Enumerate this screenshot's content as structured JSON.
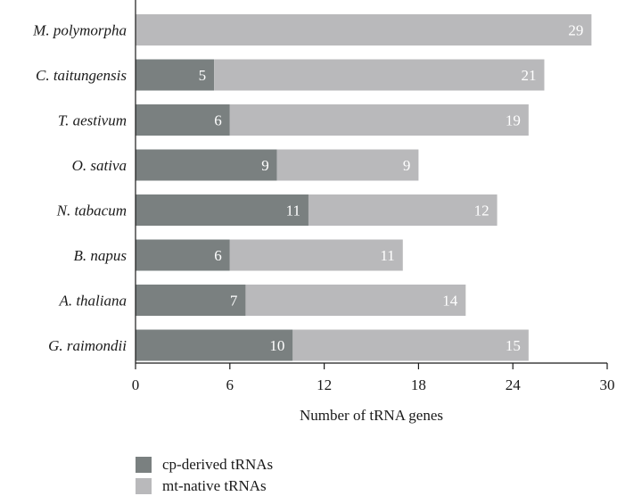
{
  "chart_data": {
    "type": "bar",
    "orientation": "horizontal",
    "stacked": true,
    "categories": [
      "M. polymorpha",
      "C. taitungensis",
      "T. aestivum",
      "O. sativa",
      "N. tabacum",
      "B. napus",
      "A. thaliana",
      "G. raimondii"
    ],
    "series": [
      {
        "name": "cp-derived tRNAs",
        "color": "#7a8080",
        "values": [
          0,
          5,
          6,
          9,
          11,
          6,
          7,
          10
        ]
      },
      {
        "name": "mt-native tRNAs",
        "color": "#b9b9bb",
        "values": [
          29,
          21,
          19,
          9,
          12,
          11,
          14,
          15
        ]
      }
    ],
    "xlabel": "Number of tRNA genes",
    "ylabel": "",
    "xlim": [
      0,
      30
    ],
    "xticks": [
      0,
      6,
      12,
      18,
      24,
      30
    ],
    "grid": false,
    "legend": "bottom-left",
    "data_labels": true
  }
}
